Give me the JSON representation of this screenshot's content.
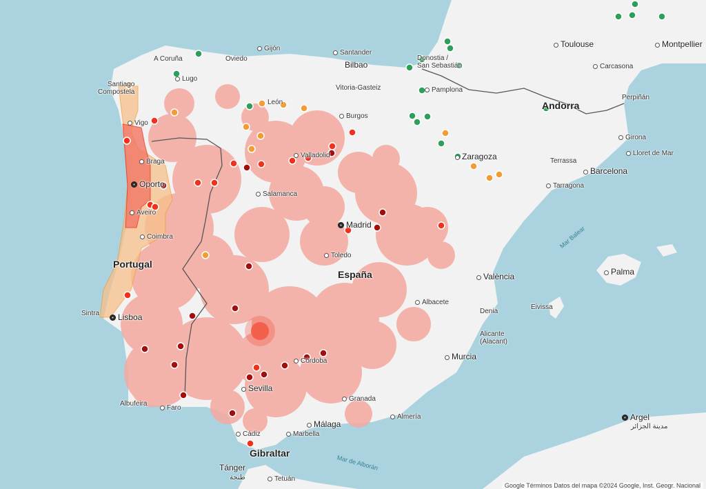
{
  "map": {
    "countries": {
      "spain": "España",
      "portugal": "Portugal",
      "andorra": "Andorra",
      "gibraltar": "Gibraltar"
    },
    "seas": {
      "balear": "Mar Balear",
      "alboran": "Mar de Alborán"
    },
    "cities": {
      "acoruna": "A Coruña",
      "lugo": "Lugo",
      "santiago": "Santiago\nCompostela",
      "oviedo": "Oviedo",
      "gijon": "Gijón",
      "santander": "Santander",
      "bilbao": "Bilbao",
      "donostia": "Donostia /\nSan Sebastián",
      "vitoria": "Vitoria-Gasteiz",
      "pamplona": "Pamplona",
      "leon": "León",
      "burgos": "Burgos",
      "vigo": "Vigo",
      "braga": "Braga",
      "oporto": "Oporto",
      "aveiro": "Aveiro",
      "coimbra": "Coimbra",
      "valladolid": "Valladolid",
      "salamanca": "Salamanca",
      "madrid": "Madrid",
      "toledo": "Toledo",
      "zaragoza": "Zaragoza",
      "terrassa": "Terrassa",
      "barcelona": "Barcelona",
      "tarragona": "Tarragona",
      "girona": "Girona",
      "lloret": "Lloret de Mar",
      "perpignan": "Perpiñán",
      "toulouse": "Toulouse",
      "montpellier": "Montpellier",
      "carcassonne": "Carcasona",
      "lisboa": "Lisboa",
      "sintra": "Sintra",
      "valencia": "València",
      "albacete": "Albacete",
      "denia": "Denia",
      "eivissa": "Eivissa",
      "palma": "Palma",
      "alicante": "Alicante\n(Alacant)",
      "murcia": "Murcia",
      "cordoba": "Córdoba",
      "sevilla": "Sevilla",
      "granada": "Granada",
      "almeria": "Almería",
      "malaga": "Málaga",
      "marbella": "Marbella",
      "cadiz": "Cádiz",
      "faro": "Faro",
      "albufeira": "Albufeira",
      "tanger": "Tánger",
      "tanger_ar": "طنجة",
      "tetuan": "Tetuán",
      "argel": "Argel",
      "argel_ar": "مدينة الجزائر"
    },
    "attribution": "Google  Términos  Datos del mapa ©2024 Google, Inst. Geogr. Nacional"
  },
  "colors": {
    "sea": "#aad3df",
    "land": "#f2f2f2",
    "heat": "#f4a99f",
    "green": "#2e9e5b",
    "orange": "#f39c34",
    "red": "#f2301b",
    "darkred": "#a30d0d"
  }
}
